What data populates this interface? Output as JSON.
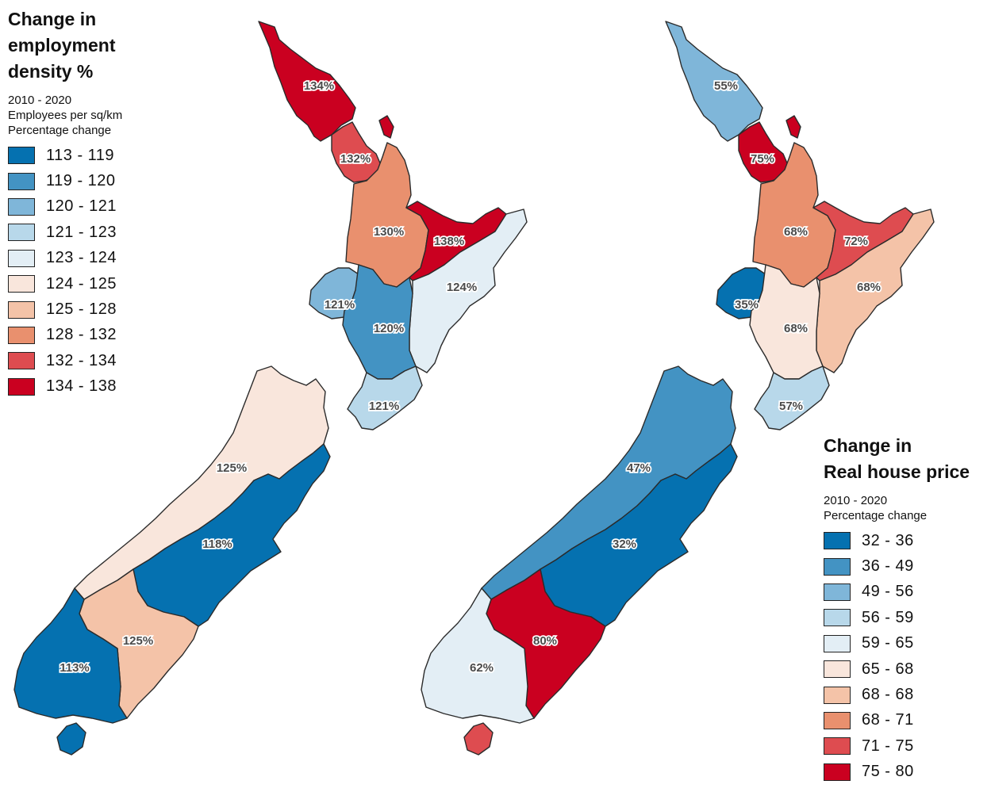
{
  "left_legend": {
    "title_lines": [
      "Change in",
      "employment",
      "density %"
    ],
    "subtitle_lines": [
      "2010 - 2020",
      "Employees per sq/km",
      "Percentage change"
    ],
    "classes": [
      {
        "label": "113 - 119",
        "color": "#0571b0"
      },
      {
        "label": "119 - 120",
        "color": "#4393c3"
      },
      {
        "label": "120 - 121",
        "color": "#7fb6d9"
      },
      {
        "label": "121 - 123",
        "color": "#b8d8ea"
      },
      {
        "label": "123 - 124",
        "color": "#e3eef5"
      },
      {
        "label": "124 - 125",
        "color": "#f9e6dc"
      },
      {
        "label": "125 - 128",
        "color": "#f4c3a8"
      },
      {
        "label": "128 - 132",
        "color": "#e9906e"
      },
      {
        "label": "132 - 134",
        "color": "#de4c50"
      },
      {
        "label": "134 - 138",
        "color": "#ca0020"
      }
    ]
  },
  "right_legend": {
    "title_lines": [
      "Change in",
      "Real house price"
    ],
    "subtitle_lines": [
      "2010 - 2020",
      "Percentage change"
    ],
    "classes": [
      {
        "label": "32 - 36",
        "color": "#0571b0"
      },
      {
        "label": "36 - 49",
        "color": "#4393c3"
      },
      {
        "label": "49 - 56",
        "color": "#7fb6d9"
      },
      {
        "label": "56 - 59",
        "color": "#b8d8ea"
      },
      {
        "label": "59 - 65",
        "color": "#e3eef5"
      },
      {
        "label": "65 - 68",
        "color": "#f9e6dc"
      },
      {
        "label": "68 - 68",
        "color": "#f4c3a8"
      },
      {
        "label": "68 - 71",
        "color": "#e9906e"
      },
      {
        "label": "71 - 75",
        "color": "#de4c50"
      },
      {
        "label": "75 - 80",
        "color": "#ca0020"
      }
    ]
  },
  "employment_map": {
    "regions": [
      {
        "name": "northland",
        "label": "134%",
        "class": 9
      },
      {
        "name": "auckland",
        "label": "132%",
        "class": 8
      },
      {
        "name": "coromandel",
        "label": "",
        "class": 9
      },
      {
        "name": "waikato",
        "label": "130%",
        "class": 7
      },
      {
        "name": "bay-of-plenty",
        "label": "138%",
        "class": 9
      },
      {
        "name": "east-coast",
        "label": "124%",
        "class": 4
      },
      {
        "name": "taranaki",
        "label": "121%",
        "class": 2
      },
      {
        "name": "central-plateau",
        "label": "120%",
        "class": 1
      },
      {
        "name": "wellington",
        "label": "121%",
        "class": 3
      },
      {
        "name": "nelson-westcoast",
        "label": "125%",
        "class": 5
      },
      {
        "name": "canterbury",
        "label": "118%",
        "class": 0
      },
      {
        "name": "otago",
        "label": "125%",
        "class": 6
      },
      {
        "name": "southland",
        "label": "113%",
        "class": 0
      },
      {
        "name": "stewart-island",
        "label": "",
        "class": 0
      }
    ]
  },
  "house_price_map": {
    "regions": [
      {
        "name": "northland",
        "label": "55%",
        "class": 2
      },
      {
        "name": "auckland",
        "label": "75%",
        "class": 9
      },
      {
        "name": "coromandel",
        "label": "",
        "class": 9
      },
      {
        "name": "waikato",
        "label": "68%",
        "class": 7
      },
      {
        "name": "bay-of-plenty",
        "label": "72%",
        "class": 8
      },
      {
        "name": "east-coast",
        "label": "68%",
        "class": 6
      },
      {
        "name": "taranaki",
        "label": "35%",
        "class": 0
      },
      {
        "name": "central-plateau",
        "label": "68%",
        "class": 5
      },
      {
        "name": "wellington",
        "label": "57%",
        "class": 3
      },
      {
        "name": "nelson-westcoast",
        "label": "47%",
        "class": 1
      },
      {
        "name": "canterbury",
        "label": "32%",
        "class": 0
      },
      {
        "name": "otago",
        "label": "80%",
        "class": 9
      },
      {
        "name": "southland",
        "label": "62%",
        "class": 4
      },
      {
        "name": "stewart-island",
        "label": "",
        "class": 8
      }
    ]
  }
}
